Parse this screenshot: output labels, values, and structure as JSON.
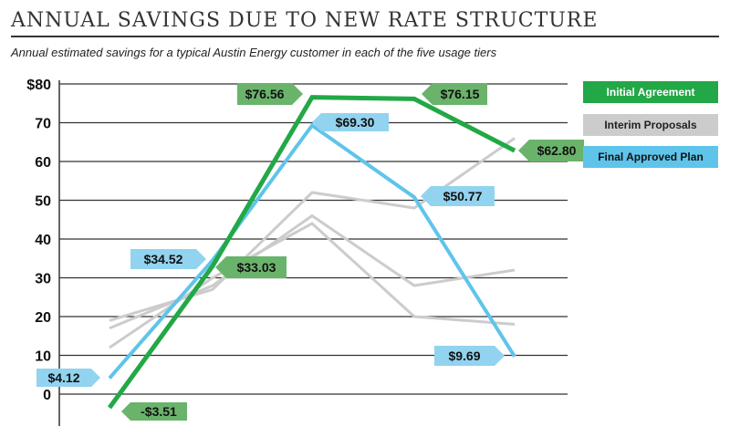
{
  "chart_data": {
    "type": "line",
    "title": "ANNUAL SAVINGS DUE TO NEW RATE STRUCTURE",
    "subtitle": "Annual estimated savings for a typical Austin Energy customer in each of the five usage tiers",
    "xlabel": "",
    "ylabel": "",
    "ylim": [
      -8,
      80
    ],
    "y_ticks": [
      {
        "value": 80,
        "label": "$80"
      },
      {
        "value": 70,
        "label": "70"
      },
      {
        "value": 60,
        "label": "60"
      },
      {
        "value": 50,
        "label": "50"
      },
      {
        "value": 40,
        "label": "40"
      },
      {
        "value": 30,
        "label": "30"
      },
      {
        "value": 20,
        "label": "20"
      },
      {
        "value": 10,
        "label": "10"
      },
      {
        "value": 0,
        "label": "0"
      }
    ],
    "grid": true,
    "legend_position": "right",
    "x": [
      1,
      2,
      3,
      4,
      5
    ],
    "series": [
      {
        "name": "Initial Agreement",
        "color": "#22a846",
        "label_color": "#6ab36b",
        "values": [
          -3.51,
          33.03,
          76.56,
          76.15,
          62.8
        ],
        "labels": [
          "-$3.51",
          "$33.03",
          "$76.56",
          "$76.15",
          "$62.80"
        ]
      },
      {
        "name": "Final Approved Plan",
        "color": "#5fc4ea",
        "label_color": "#92d3ef",
        "values": [
          4.12,
          34.52,
          69.3,
          50.77,
          9.69
        ],
        "labels": [
          "$4.12",
          "$34.52",
          "$69.30",
          "$50.77",
          "$9.69"
        ]
      },
      {
        "name": "Interim Proposals",
        "color": "#cccccc",
        "values": [
          19,
          27,
          52,
          48,
          66
        ]
      },
      {
        "name": "Interim Proposals",
        "color": "#cccccc",
        "values": [
          17,
          28,
          46,
          28,
          32
        ]
      },
      {
        "name": "Interim Proposals",
        "color": "#cccccc",
        "values": [
          12,
          30,
          44,
          20,
          18
        ]
      }
    ],
    "legend": [
      {
        "label": "Initial Agreement",
        "bg": "#22a846",
        "text": "#ffffff"
      },
      {
        "label": "Interim Proposals",
        "bg": "#cccccc",
        "text": "#222222"
      },
      {
        "label": "Final Approved Plan",
        "bg": "#5fc4ea",
        "text": "#111111"
      }
    ]
  }
}
